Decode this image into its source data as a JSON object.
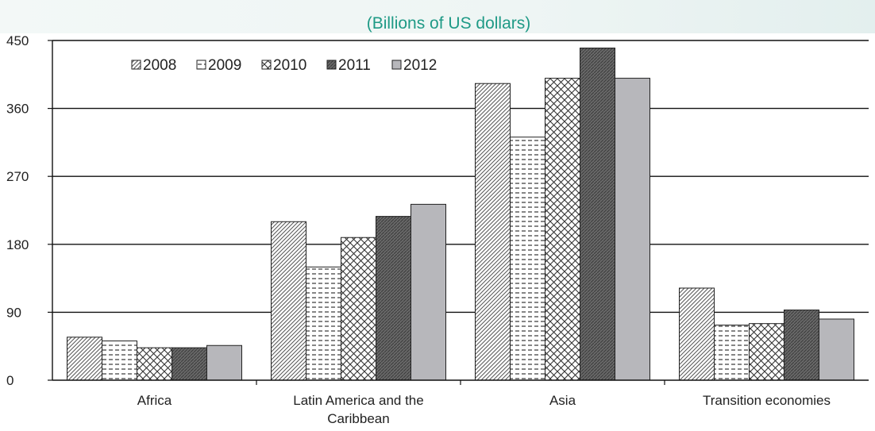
{
  "chart_data": {
    "type": "bar",
    "subtitle": "(Billions of US dollars)",
    "categories": [
      "Africa",
      "Latin America and the Caribbean",
      "Asia",
      "Transition economies"
    ],
    "category_lines": [
      [
        "Africa"
      ],
      [
        "Latin America and the",
        "Caribbean"
      ],
      [
        "Asia"
      ],
      [
        "Transition economies"
      ]
    ],
    "series": [
      {
        "name": "2008",
        "pattern": "diag-lines",
        "values": [
          57,
          210,
          393,
          122
        ]
      },
      {
        "name": "2009",
        "pattern": "dashes",
        "values": [
          52,
          150,
          322,
          73
        ]
      },
      {
        "name": "2010",
        "pattern": "crosshatch",
        "values": [
          43,
          189,
          400,
          75
        ]
      },
      {
        "name": "2011",
        "pattern": "dense-dark",
        "values": [
          43,
          217,
          440,
          93
        ]
      },
      {
        "name": "2012",
        "pattern": "solid-gray",
        "values": [
          46,
          233,
          400,
          81
        ]
      }
    ],
    "yticks": [
      "0",
      "90",
      "180",
      "270",
      "360",
      "450"
    ],
    "ylim": [
      0,
      450
    ],
    "grid": "horizontal",
    "legend": "top-left",
    "xlabel": "",
    "ylabel": ""
  }
}
